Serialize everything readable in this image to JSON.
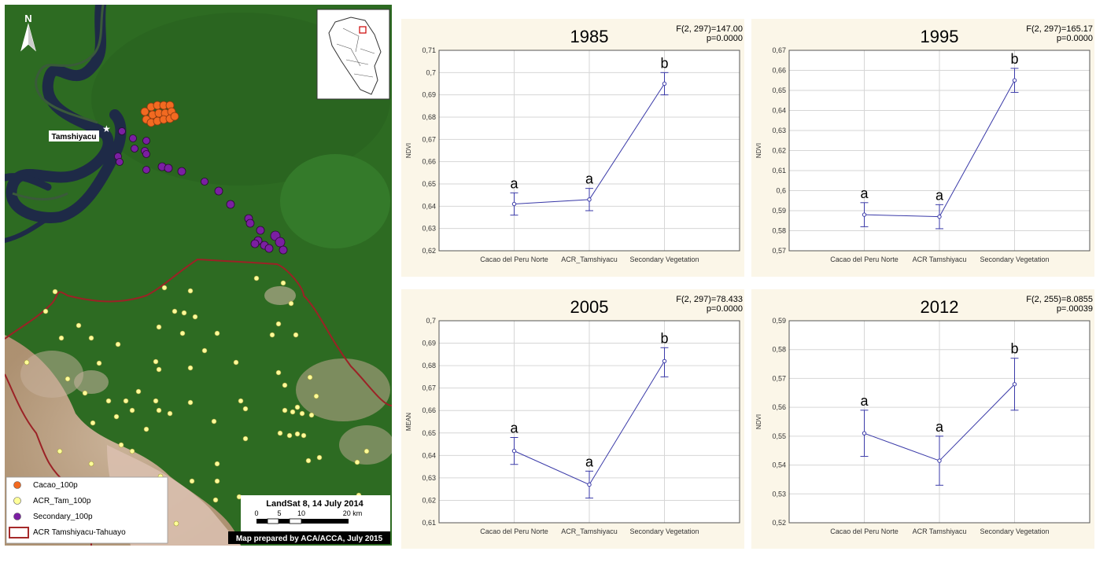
{
  "map": {
    "north_label": "N",
    "town_label": "Tamshiyacu",
    "scale_title": "LandSat 8, 14 July 2014",
    "scale_ticks": [
      "0",
      "5",
      "10",
      "20 km"
    ],
    "credit": "Map prepared by ACA/ACCA, July 2015",
    "legend": [
      {
        "label": "Cacao_100p",
        "color": "#f26a21",
        "kind": "dot"
      },
      {
        "label": "ACR_Tam_100p",
        "color": "#ffff99",
        "kind": "dot"
      },
      {
        "label": "Secondary_100p",
        "color": "#7b1fa2",
        "kind": "dot"
      },
      {
        "label": "ACR Tamshiyacu-Tahuayo",
        "color": "#a52a2a",
        "kind": "box"
      }
    ],
    "colors": {
      "forest": "#2d6b22",
      "river": "#1e2a47",
      "bare": "#c9a48a"
    }
  },
  "chart_data": [
    {
      "type": "line",
      "title": "1985",
      "stat_line1": "F(2, 297)=147.00",
      "stat_line2": "p=0.0000",
      "ylabel": "NDVI",
      "categories": [
        "Cacao del Peru Norte",
        "ACR_Tamshiyacu",
        "Secondary Vegetation"
      ],
      "values": [
        0.641,
        0.643,
        0.695
      ],
      "ci_low": [
        0.636,
        0.638,
        0.69
      ],
      "ci_high": [
        0.646,
        0.648,
        0.7
      ],
      "group_labels": [
        "a",
        "a",
        "b"
      ],
      "ylim": [
        0.62,
        0.71
      ],
      "yticks": [
        0.62,
        0.63,
        0.64,
        0.65,
        0.66,
        0.67,
        0.68,
        0.69,
        0.7,
        0.71
      ],
      "ytick_labels": [
        "0,62",
        "0,63",
        "0,64",
        "0,65",
        "0,66",
        "0,67",
        "0,68",
        "0,69",
        "0,7",
        "0,71"
      ],
      "grid": true,
      "line_color": "#3a3aa8"
    },
    {
      "type": "line",
      "title": "1995",
      "stat_line1": "F(2, 297)=165.17",
      "stat_line2": "p=0.0000",
      "ylabel": "NDVI",
      "categories": [
        "Cacao del Peru Norte",
        "ACR Tamshiyacu",
        "Secondary Vegetation"
      ],
      "values": [
        0.588,
        0.587,
        0.655
      ],
      "ci_low": [
        0.582,
        0.581,
        0.649
      ],
      "ci_high": [
        0.594,
        0.593,
        0.661
      ],
      "group_labels": [
        "a",
        "a",
        "b"
      ],
      "ylim": [
        0.57,
        0.67
      ],
      "yticks": [
        0.57,
        0.58,
        0.59,
        0.6,
        0.61,
        0.62,
        0.63,
        0.64,
        0.65,
        0.66,
        0.67
      ],
      "ytick_labels": [
        "0,57",
        "0,58",
        "0,59",
        "0,6",
        "0,61",
        "0,62",
        "0,63",
        "0,64",
        "0,65",
        "0,66",
        "0,67"
      ],
      "grid": true,
      "line_color": "#3a3aa8"
    },
    {
      "type": "line",
      "title": "2005",
      "stat_line1": "F(2, 297)=78.433",
      "stat_line2": "p=0.0000",
      "ylabel": "MEAN",
      "categories": [
        "Cacao del Peru Norte",
        "ACR_Tamshiyacu",
        "Secondary Vegetation"
      ],
      "values": [
        0.642,
        0.627,
        0.682
      ],
      "ci_low": [
        0.636,
        0.621,
        0.675
      ],
      "ci_high": [
        0.648,
        0.633,
        0.688
      ],
      "group_labels": [
        "a",
        "a",
        "b"
      ],
      "ylim": [
        0.61,
        0.7
      ],
      "yticks": [
        0.61,
        0.62,
        0.63,
        0.64,
        0.65,
        0.66,
        0.67,
        0.68,
        0.69,
        0.7
      ],
      "ytick_labels": [
        "0,61",
        "0,62",
        "0,63",
        "0,64",
        "0,65",
        "0,66",
        "0,67",
        "0,68",
        "0,69",
        "0,7"
      ],
      "grid": true,
      "line_color": "#3a3aa8"
    },
    {
      "type": "line",
      "title": "2012",
      "stat_line1": "F(2, 255)=8.0855",
      "stat_line2": "p=.00039",
      "ylabel": "NDVI",
      "categories": [
        "Cacao del Peru Norte",
        "ACR Tamshiyacu",
        "Secondary Vegetation"
      ],
      "values": [
        0.551,
        0.5415,
        0.568
      ],
      "ci_low": [
        0.543,
        0.533,
        0.559
      ],
      "ci_high": [
        0.559,
        0.55,
        0.577
      ],
      "group_labels": [
        "a",
        "a",
        "b"
      ],
      "ylim": [
        0.52,
        0.59
      ],
      "yticks": [
        0.52,
        0.53,
        0.54,
        0.55,
        0.56,
        0.57,
        0.58,
        0.59
      ],
      "ytick_labels": [
        "0,52",
        "0,53",
        "0,54",
        "0,55",
        "0,56",
        "0,57",
        "0,58",
        "0,59"
      ],
      "grid": true,
      "line_color": "#3a3aa8"
    }
  ]
}
